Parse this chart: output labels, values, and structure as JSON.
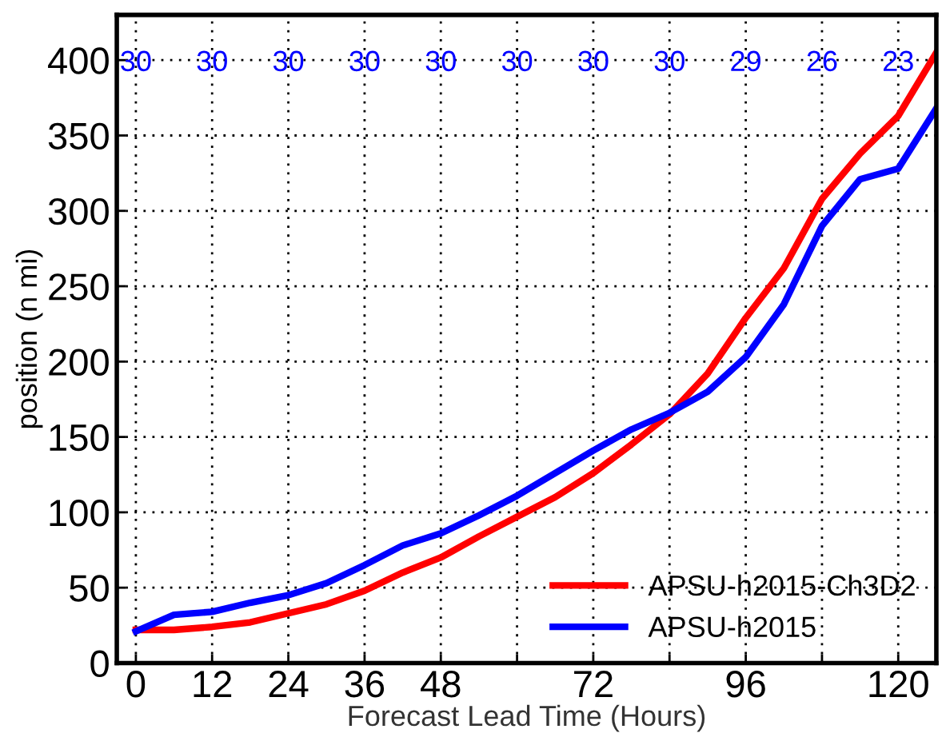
{
  "chart_data": {
    "type": "line",
    "xlabel": "Forecast Lead Time (Hours)",
    "ylabel": "position (n mi)",
    "x": [
      0,
      6,
      12,
      18,
      24,
      30,
      36,
      42,
      48,
      54,
      60,
      66,
      72,
      78,
      84,
      90,
      96,
      102,
      108,
      114,
      120,
      126
    ],
    "series": [
      {
        "name": "APSU-h2015-Ch3D2",
        "color": "#ff0000",
        "values": [
          22,
          22,
          24,
          27,
          33,
          39,
          48,
          60,
          70,
          84,
          97,
          110,
          126,
          145,
          165,
          192,
          229,
          262,
          308,
          338,
          363,
          405
        ]
      },
      {
        "name": "APSU-h2015",
        "color": "#0000ff",
        "values": [
          21,
          32,
          34,
          40,
          45,
          53,
          65,
          78,
          86,
          98,
          111,
          126,
          141,
          155,
          166,
          180,
          203,
          238,
          290,
          321,
          328,
          368
        ]
      }
    ],
    "xlim": [
      -3,
      126
    ],
    "ylim": [
      0,
      430
    ],
    "xticks": [
      0,
      12,
      24,
      36,
      48,
      {
        "value": 60,
        "label": null
      },
      72,
      {
        "value": 84,
        "label": null
      },
      96,
      {
        "value": 108,
        "label": null
      },
      120
    ],
    "yticks": [
      0,
      50,
      100,
      150,
      200,
      250,
      300,
      350,
      400
    ],
    "annotations": [
      "30",
      "30",
      "30",
      "30",
      "30",
      "30",
      "30",
      "30",
      "29",
      "26",
      "23"
    ],
    "grid": true,
    "legend": "bottom right",
    "marker": "none",
    "line_style": "solid"
  }
}
